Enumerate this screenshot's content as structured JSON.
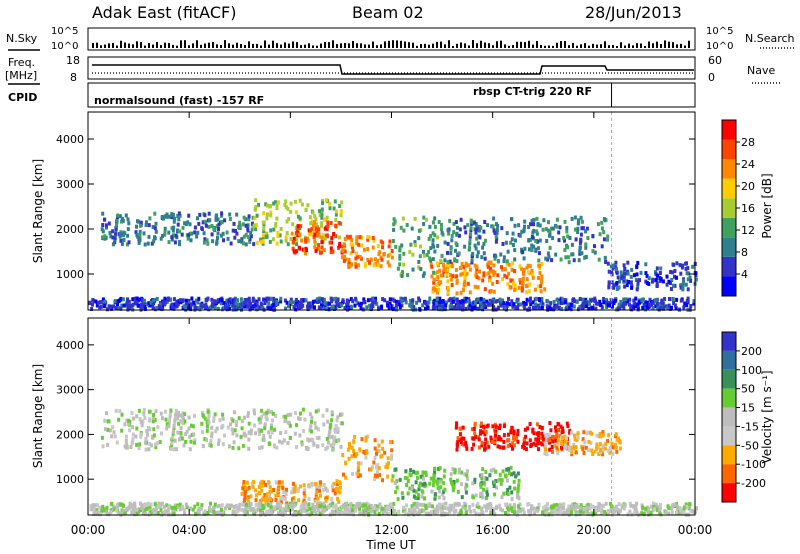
{
  "header": {
    "title": "Adak East (fitACF)",
    "beam": "Beam 02",
    "date": "28/Jun/2013"
  },
  "side_labels": {
    "nsky": "N.Sky",
    "freq": "Freq.",
    "freq_unit": "[MHz]",
    "cpid": "CPID",
    "nsearch": "N.Search",
    "nave": "Nave"
  },
  "noise_axis": {
    "ticks_left": [
      "10^5",
      "10^0"
    ],
    "ticks_right": [
      "10^5",
      "10^0"
    ]
  },
  "freq_axis": {
    "ticks_left": [
      "18",
      "8"
    ],
    "ticks_right": [
      "60",
      "0"
    ]
  },
  "cpid": {
    "labels": [
      "normalsound (fast) -157 RF",
      "rbsp CT-trig 220 RF"
    ],
    "change_hour": 20.7
  },
  "colors": {
    "power": [
      "#0000ff",
      "#3333cc",
      "#2f7f8f",
      "#40a060",
      "#aacc33",
      "#ffcc00",
      "#ff8800",
      "#ff4400",
      "#ff0000"
    ],
    "velocity": [
      "#3333cc",
      "#2f6f9f",
      "#3a8f5a",
      "#66cc33",
      "#bdbdbd",
      "#c8c8c8",
      "#ffaa00",
      "#ff6600",
      "#ff0000"
    ]
  },
  "chart_data": [
    {
      "type": "heatmap",
      "name": "power",
      "xlabel": "",
      "ylabel": "Slant Range [km]",
      "xlim": [
        0,
        24
      ],
      "ylim": [
        200,
        4600
      ],
      "yticks": [
        1000,
        2000,
        3000,
        4000
      ],
      "colorbar_label": "Power [dB]",
      "colorbar_ticks": [
        "4",
        "8",
        "12",
        "16",
        "20",
        "24",
        "28"
      ],
      "regions": [
        {
          "t0": 0.5,
          "t1": 6.5,
          "r0": 1700,
          "r1": 2400,
          "level": 2
        },
        {
          "t0": 6.5,
          "t1": 10.0,
          "r0": 1700,
          "r1": 2700,
          "level": 4
        },
        {
          "t0": 8.0,
          "t1": 10.0,
          "r0": 1500,
          "r1": 2200,
          "level": 7
        },
        {
          "t0": 10.0,
          "t1": 12.0,
          "r0": 1200,
          "r1": 1900,
          "level": 6
        },
        {
          "t0": 12.0,
          "t1": 14.0,
          "r0": 1000,
          "r1": 2300,
          "level": 3
        },
        {
          "t0": 13.5,
          "t1": 18.0,
          "r0": 600,
          "r1": 1300,
          "level": 6
        },
        {
          "t0": 14.0,
          "t1": 20.5,
          "r0": 1300,
          "r1": 2300,
          "level": 2
        },
        {
          "t0": 20.5,
          "t1": 24.0,
          "r0": 700,
          "r1": 1300,
          "level": 1
        },
        {
          "t0": 0.0,
          "t1": 24.0,
          "r0": 250,
          "r1": 500,
          "level": 1
        }
      ]
    },
    {
      "type": "heatmap",
      "name": "velocity",
      "xlabel": "Time UT",
      "ylabel": "Slant Range [km]",
      "xlim": [
        0,
        24
      ],
      "ylim": [
        200,
        4600
      ],
      "xticks": [
        "00:00",
        "04:00",
        "08:00",
        "12:00",
        "16:00",
        "20:00",
        "00:00"
      ],
      "yticks": [
        1000,
        2000,
        3000,
        4000
      ],
      "colorbar_label": "Velocity [m s⁻¹]",
      "colorbar_ticks": [
        "200",
        "100",
        "50",
        "15",
        "-15",
        "-50",
        "-100",
        "-200"
      ],
      "regions": [
        {
          "t0": 0.5,
          "t1": 10.0,
          "r0": 1700,
          "r1": 2600,
          "level": 4
        },
        {
          "t0": 10.0,
          "t1": 12.0,
          "r0": 1000,
          "r1": 2000,
          "level": 6
        },
        {
          "t0": 12.0,
          "t1": 17.0,
          "r0": 600,
          "r1": 1300,
          "level": 3
        },
        {
          "t0": 14.5,
          "t1": 19.0,
          "r0": 1700,
          "r1": 2300,
          "level": 8
        },
        {
          "t0": 18.0,
          "t1": 21.0,
          "r0": 1600,
          "r1": 2100,
          "level": 6
        },
        {
          "t0": 6.0,
          "t1": 10.0,
          "r0": 500,
          "r1": 1000,
          "level": 6
        },
        {
          "t0": 0.0,
          "t1": 24.0,
          "r0": 250,
          "r1": 500,
          "level": 4
        }
      ]
    }
  ]
}
